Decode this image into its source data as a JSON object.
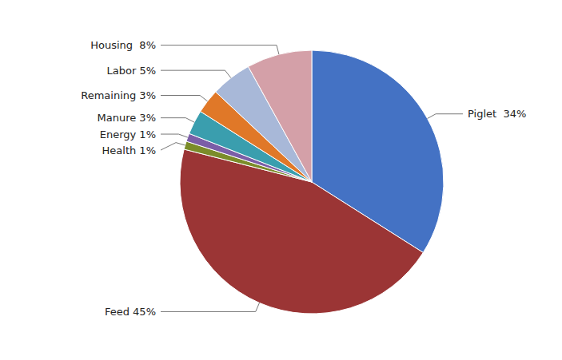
{
  "chart_data": {
    "type": "pie",
    "categories": [
      "Piglet  34%",
      "Feed 45%",
      "Health 1%",
      "Energy 1%",
      "Manure 3%",
      "Remaining 3%",
      "Labor 5%",
      "Housing  8%"
    ],
    "values": [
      34,
      45,
      1,
      1,
      3,
      3,
      5,
      8
    ],
    "colors": [
      "#4472C4",
      "#9B3535",
      "#7B8C2A",
      "#7B5EA7",
      "#3A9EAE",
      "#E07828",
      "#A8B8D8",
      "#D4A0A8"
    ]
  }
}
